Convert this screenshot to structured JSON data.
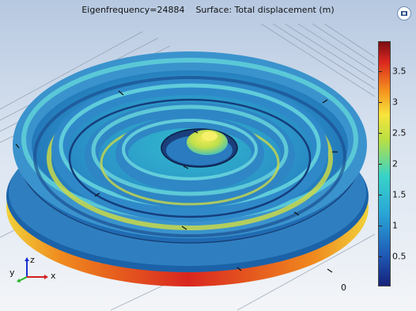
{
  "plot": {
    "eigenfrequency": "Eigenfrequency=24884",
    "surface": "Surface: Total displacement (m)"
  },
  "colorbar": {
    "colors": [
      "#16217a",
      "#1f5cb8",
      "#2aa7d6",
      "#37d3c8",
      "#b9e043",
      "#f7e53b",
      "#f5921e",
      "#d9261f",
      "#7b0e12"
    ],
    "ticks": [
      "3.5",
      "3",
      "2.5",
      "2",
      "1.5",
      "1",
      "0.5"
    ],
    "tick_values": [
      3.5,
      3,
      2.5,
      2,
      1.5,
      1,
      0.5
    ],
    "min": 0,
    "max": 3.9
  },
  "axis_label": "0",
  "triad": {
    "z": "z",
    "y": "y",
    "x": "x"
  },
  "icons": {
    "zoom": "zoom-extents-icon"
  }
}
